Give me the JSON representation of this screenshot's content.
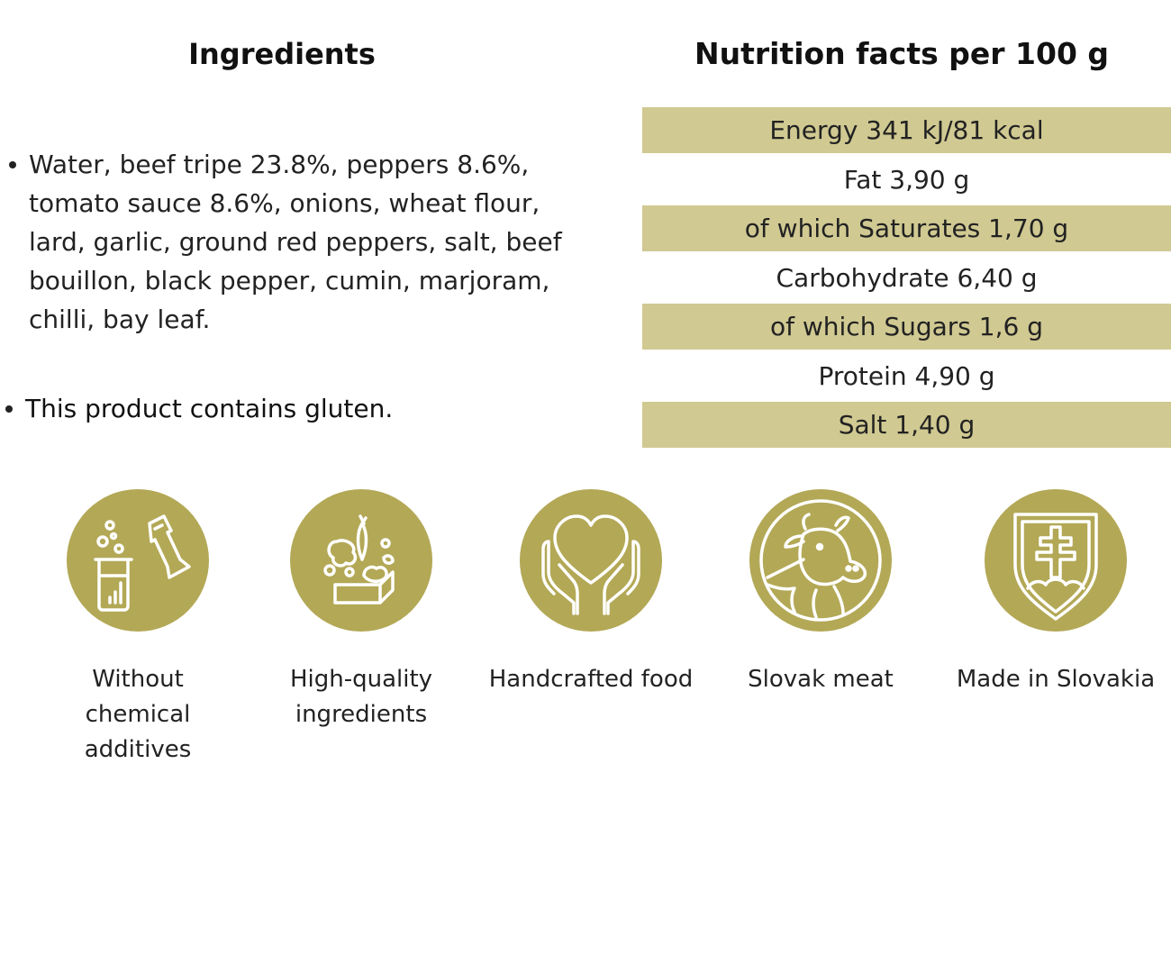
{
  "colors": {
    "accent": "#b3a856",
    "band": "#d0c992",
    "text": "#222222"
  },
  "ingredients": {
    "title": "Ingredients",
    "items": [
      "Water, beef tripe 23.8%, peppers 8.6%, tomato sauce 8.6%, onions, wheat flour, lard, garlic, ground red peppers, salt, beef bouillon, black pepper, cumin, marjoram, chilli, bay leaf."
    ],
    "allergen_note": "This product contains gluten."
  },
  "nutrition": {
    "title": "Nutrition facts per 100 g",
    "rows": [
      "Energy 341 kJ/81 kcal",
      "Fat 3,90 g",
      "of which Saturates 1,70 g",
      "Carbohydrate 6,40 g",
      "of which Sugars 1,6 g",
      "Protein 4,90 g",
      "Salt 1,40 g"
    ]
  },
  "features": [
    {
      "icon": "lab-flask-icon",
      "label": "Without\nchemical\nadditives"
    },
    {
      "icon": "vegetables-icon",
      "label": "High-quality\ningredients"
    },
    {
      "icon": "heart-hands-icon",
      "label": "Handcrafted food"
    },
    {
      "icon": "cow-pig-icon",
      "label": "Slovak meat"
    },
    {
      "icon": "slovak-coat-of-arms-icon",
      "label": "Made in Slovakia"
    }
  ]
}
